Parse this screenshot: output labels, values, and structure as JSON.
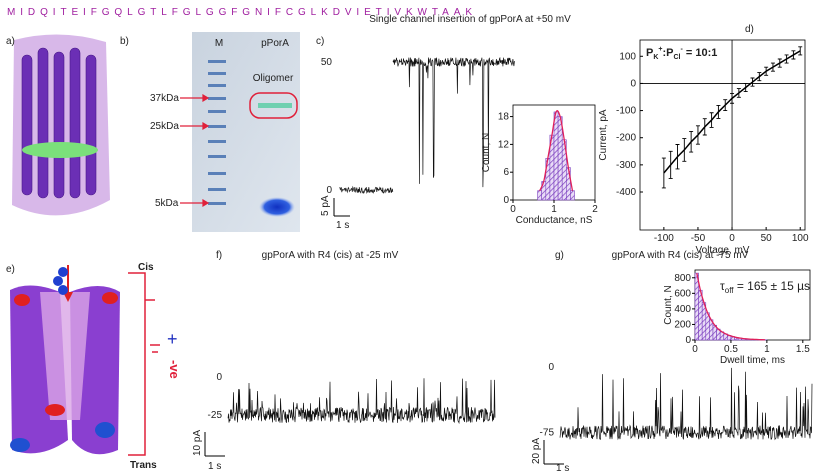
{
  "sequence": "MIDQITEIFGQLGTLFGLGGFGNIFCGLKDVIETIVKWTAAK",
  "panels": {
    "a": {
      "label": "a)"
    },
    "b": {
      "label": "b)",
      "lanes": [
        "M",
        "pPorA"
      ],
      "markers": [
        "37kDa",
        "25kDa",
        "5kDa"
      ],
      "annotation": "Oligomer"
    },
    "c": {
      "label": "c)",
      "title": "Single channel insertion of gpPorA at +50 mV",
      "trace": {
        "type": "line",
        "ylim": [
          -15.6,
          58.6
        ],
        "yticks": [
          0,
          50
        ],
        "scale_bars": {
          "y": "5 pA",
          "x": "1 s"
        }
      },
      "inset": {
        "type": "histogram",
        "bins": [
          0.6,
          0.7,
          0.8,
          0.9,
          1.0,
          1.1,
          1.2,
          1.3,
          1.4,
          1.5
        ],
        "counts": [
          2,
          4,
          9,
          14,
          19,
          18,
          13,
          7,
          2
        ],
        "xlim": [
          0,
          2
        ],
        "xticks": [
          0,
          1,
          2
        ],
        "ylim": [
          0,
          20.5
        ],
        "yticks": [
          0,
          6,
          12,
          18
        ],
        "xlabel": "Conductance, nS",
        "ylabel": "Count, N",
        "color": "#7b3fbf",
        "fit_color": "#e0205a"
      }
    },
    "d": {
      "label": "d)",
      "type": "line",
      "x": [
        -100,
        -90,
        -80,
        -70,
        -60,
        -50,
        -40,
        -30,
        -20,
        -10,
        0,
        10,
        20,
        30,
        40,
        50,
        60,
        70,
        80,
        90,
        100
      ],
      "values": [
        -330,
        -300,
        -270,
        -245,
        -215,
        -190,
        -160,
        -135,
        -105,
        -80,
        -55,
        -35,
        -15,
        5,
        25,
        45,
        60,
        75,
        90,
        105,
        120
      ],
      "errors": [
        55,
        50,
        45,
        42,
        38,
        34,
        30,
        27,
        24,
        20,
        18,
        16,
        15,
        15,
        15,
        15,
        15,
        15,
        15,
        15,
        15
      ],
      "xlim": [
        -135,
        107
      ],
      "xticks": [
        -100,
        -50,
        0,
        50,
        100
      ],
      "ylim": [
        -540,
        160
      ],
      "yticks": [
        -400,
        -300,
        -200,
        -100,
        0,
        100
      ],
      "xlabel": "Voltage, mV",
      "ylabel": "Current, pA",
      "annotation": [
        "P",
        "K",
        "+",
        ":P",
        "Cl",
        "-",
        " = 10:1"
      ],
      "color": "#000000"
    },
    "e": {
      "label": "e)",
      "cis": "Cis",
      "trans": "Trans",
      "plus": "+",
      "minus": "-ve"
    },
    "f": {
      "label": "f)",
      "title": "gpPorA with R4 (cis) at -25 mV",
      "trace": {
        "type": "line",
        "ylim": [
          -48,
          11
        ],
        "yticks": [
          -25,
          0
        ],
        "scale_bars": {
          "y": "10 pA",
          "x": "1 s"
        }
      }
    },
    "g": {
      "label": "g)",
      "title": "gpPorA with R4 (cis) at -75 mV",
      "trace": {
        "type": "line",
        "ylim": [
          -101,
          14
        ],
        "yticks": [
          -75,
          0
        ],
        "scale_bars": {
          "y": "20 pA",
          "x": "1 s"
        }
      },
      "inset": {
        "type": "histogram",
        "bins": [
          0,
          0.05,
          0.1,
          0.15,
          0.2,
          0.25,
          0.3,
          0.35,
          0.4,
          0.45,
          0.5,
          0.55,
          0.6,
          0.65,
          0.7,
          0.75,
          0.8,
          0.85,
          0.9,
          0.95,
          1.0
        ],
        "counts": [
          860,
          640,
          480,
          350,
          260,
          190,
          140,
          105,
          80,
          60,
          45,
          33,
          25,
          18,
          14,
          10,
          8,
          6,
          4,
          3
        ],
        "xlim": [
          0,
          1.6
        ],
        "xticks": [
          0,
          0.5,
          1,
          1.5
        ],
        "ylim": [
          0,
          900
        ],
        "yticks": [
          0,
          200,
          400,
          600,
          800
        ],
        "xlabel": "Dwell time, ms",
        "ylabel": "Count, N",
        "color": "#7b3fbf",
        "fit_color": "#e0205a",
        "annotation": [
          "τ",
          "off",
          " = 165 ± 15 µs"
        ]
      }
    }
  }
}
